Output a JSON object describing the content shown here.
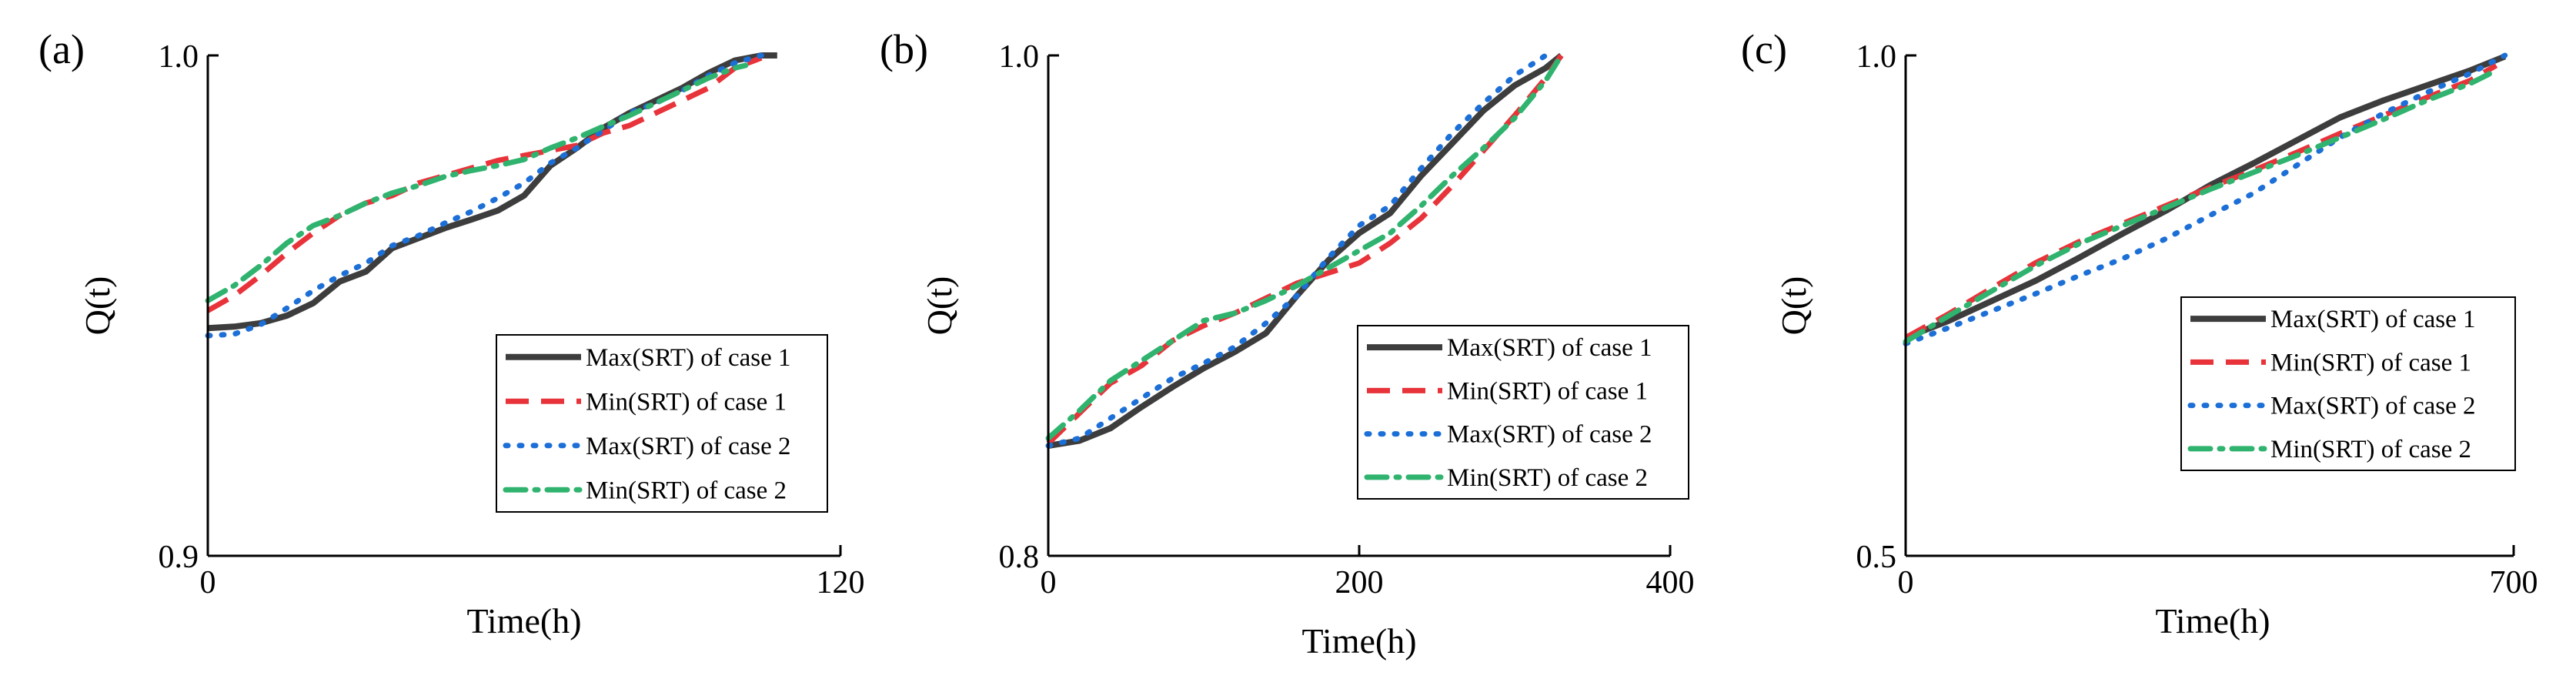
{
  "colors": {
    "max1": "#3d3d3d",
    "min1": "#e8333a",
    "max2": "#1c6fd6",
    "min2": "#2fb36e"
  },
  "chart_data": [
    {
      "type": "line",
      "panel_label": "(a)",
      "xlabel": "Time(h)",
      "ylabel": "Q(t)",
      "xlim": [
        0,
        120
      ],
      "ylim": [
        0.9,
        1.0
      ],
      "x_ticks": [
        0,
        120
      ],
      "x_tick_labels": [
        "0",
        "120"
      ],
      "y_ticks": [
        0.9,
        1.0
      ],
      "y_tick_labels": [
        "0.9",
        "1.0"
      ],
      "legend_position": "lower-right",
      "series": [
        {
          "name": "Max(SRT) of case 1",
          "style": "solid",
          "color": "#3d3d3d",
          "x": [
            0,
            5,
            10,
            15,
            20,
            25,
            30,
            35,
            40,
            45,
            50,
            55,
            60,
            65,
            70,
            75,
            80,
            85,
            90,
            95,
            100,
            105,
            108
          ],
          "y": [
            0.9455,
            0.9458,
            0.9465,
            0.948,
            0.9505,
            0.9548,
            0.9568,
            0.9615,
            0.9635,
            0.9655,
            0.9672,
            0.969,
            0.972,
            0.978,
            0.9815,
            0.9855,
            0.9885,
            0.991,
            0.9935,
            0.9965,
            0.999,
            1.0,
            1.0
          ]
        },
        {
          "name": "Min(SRT) of case 1",
          "style": "dash",
          "color": "#e8333a",
          "x": [
            0,
            5,
            10,
            15,
            20,
            25,
            30,
            35,
            40,
            45,
            50,
            55,
            60,
            65,
            70,
            75,
            80,
            85,
            90,
            95,
            100,
            105
          ],
          "y": [
            0.949,
            0.952,
            0.956,
            0.9605,
            0.9645,
            0.968,
            0.9705,
            0.972,
            0.9745,
            0.976,
            0.9775,
            0.979,
            0.98,
            0.981,
            0.982,
            0.9845,
            0.986,
            0.9885,
            0.991,
            0.9935,
            0.9975,
            0.9995
          ]
        },
        {
          "name": "Max(SRT) of case 2",
          "style": "dot",
          "color": "#1c6fd6",
          "x": [
            0,
            5,
            10,
            15,
            20,
            25,
            30,
            35,
            40,
            45,
            50,
            55,
            60,
            65,
            70,
            75,
            80,
            85,
            90,
            95,
            100,
            105
          ],
          "y": [
            0.944,
            0.9443,
            0.9462,
            0.9495,
            0.953,
            0.956,
            0.9585,
            0.962,
            0.964,
            0.9665,
            0.9688,
            0.9715,
            0.9745,
            0.9785,
            0.9815,
            0.985,
            0.9885,
            0.9905,
            0.993,
            0.996,
            0.9985,
            1.0
          ]
        },
        {
          "name": "Min(SRT) of case 2",
          "style": "dashdot",
          "color": "#2fb36e",
          "x": [
            0,
            5,
            10,
            15,
            20,
            25,
            30,
            35,
            40,
            45,
            50,
            55,
            60,
            65,
            70,
            75,
            80,
            85,
            90,
            95,
            100,
            102
          ],
          "y": [
            0.951,
            0.954,
            0.958,
            0.9625,
            0.966,
            0.968,
            0.9705,
            0.9725,
            0.974,
            0.9758,
            0.977,
            0.978,
            0.9792,
            0.9815,
            0.9835,
            0.9858,
            0.988,
            0.9905,
            0.993,
            0.9955,
            0.9975,
            0.998
          ]
        }
      ]
    },
    {
      "type": "line",
      "panel_label": "(b)",
      "xlabel": "Time(h)",
      "ylabel": "Q(t)",
      "xlim": [
        0,
        400
      ],
      "ylim": [
        0.8,
        1.0
      ],
      "x_ticks": [
        0,
        200,
        400
      ],
      "x_tick_labels": [
        "0",
        "200",
        "400"
      ],
      "y_ticks": [
        0.8,
        1.0
      ],
      "y_tick_labels": [
        "0.8",
        "1.0"
      ],
      "legend_position": "lower-right",
      "series": [
        {
          "name": "Max(SRT) of case 1",
          "style": "solid",
          "color": "#3d3d3d",
          "x": [
            0,
            20,
            40,
            60,
            80,
            100,
            120,
            140,
            160,
            180,
            200,
            220,
            240,
            260,
            280,
            300,
            320,
            330
          ],
          "y": [
            0.844,
            0.846,
            0.851,
            0.8595,
            0.8675,
            0.875,
            0.8815,
            0.889,
            0.904,
            0.918,
            0.929,
            0.937,
            0.952,
            0.965,
            0.978,
            0.988,
            0.995,
            1.0
          ]
        },
        {
          "name": "Min(SRT) of case 1",
          "style": "dash",
          "color": "#e8333a",
          "x": [
            0,
            20,
            40,
            60,
            80,
            100,
            120,
            140,
            160,
            180,
            200,
            220,
            240,
            260,
            280,
            300,
            320,
            330
          ],
          "y": [
            0.845,
            0.857,
            0.869,
            0.876,
            0.886,
            0.892,
            0.897,
            0.903,
            0.909,
            0.913,
            0.917,
            0.925,
            0.935,
            0.948,
            0.962,
            0.976,
            0.991,
            1.0
          ]
        },
        {
          "name": "Max(SRT) of case 2",
          "style": "dot",
          "color": "#1c6fd6",
          "x": [
            0,
            20,
            40,
            60,
            80,
            100,
            120,
            140,
            160,
            180,
            200,
            220,
            240,
            260,
            280,
            300,
            320
          ],
          "y": [
            0.844,
            0.847,
            0.855,
            0.863,
            0.871,
            0.877,
            0.8835,
            0.893,
            0.904,
            0.919,
            0.932,
            0.94,
            0.955,
            0.969,
            0.981,
            0.992,
            1.0
          ]
        },
        {
          "name": "Min(SRT) of case 2",
          "style": "dashdot",
          "color": "#2fb36e",
          "x": [
            0,
            20,
            40,
            60,
            80,
            100,
            120,
            140,
            160,
            180,
            200,
            220,
            240,
            260,
            280,
            300,
            320,
            330
          ],
          "y": [
            0.847,
            0.858,
            0.87,
            0.878,
            0.886,
            0.894,
            0.897,
            0.902,
            0.908,
            0.915,
            0.922,
            0.929,
            0.94,
            0.952,
            0.963,
            0.975,
            0.99,
            1.0
          ]
        }
      ]
    },
    {
      "type": "line",
      "panel_label": "(c)",
      "xlabel": "Time(h)",
      "ylabel": "Q(t)",
      "xlim": [
        0,
        700
      ],
      "ylim": [
        0.5,
        1.0
      ],
      "x_ticks": [
        0,
        700
      ],
      "x_tick_labels": [
        "0",
        "700"
      ],
      "y_ticks": [
        0.5,
        1.0
      ],
      "y_tick_labels": [
        "0.5",
        "1.0"
      ],
      "legend_position": "lower-right",
      "series": [
        {
          "name": "Max(SRT) of case 1",
          "style": "solid",
          "color": "#3d3d3d",
          "x": [
            0,
            50,
            100,
            150,
            200,
            250,
            300,
            350,
            400,
            450,
            500,
            550,
            600,
            650,
            690
          ],
          "y": [
            0.718,
            0.735,
            0.755,
            0.775,
            0.798,
            0.822,
            0.845,
            0.87,
            0.892,
            0.915,
            0.938,
            0.955,
            0.97,
            0.985,
            0.999
          ]
        },
        {
          "name": "Min(SRT) of case 1",
          "style": "dash",
          "color": "#e8333a",
          "x": [
            0,
            50,
            100,
            150,
            200,
            250,
            300,
            350,
            400,
            450,
            500,
            550,
            600,
            650,
            680
          ],
          "y": [
            0.718,
            0.742,
            0.768,
            0.793,
            0.814,
            0.832,
            0.85,
            0.868,
            0.885,
            0.903,
            0.922,
            0.94,
            0.958,
            0.975,
            0.99
          ]
        },
        {
          "name": "Max(SRT) of case 2",
          "style": "dot",
          "color": "#1c6fd6",
          "x": [
            0,
            50,
            100,
            150,
            200,
            250,
            300,
            350,
            400,
            450,
            500,
            550,
            600,
            650,
            690
          ],
          "y": [
            0.712,
            0.728,
            0.745,
            0.762,
            0.78,
            0.797,
            0.817,
            0.84,
            0.862,
            0.89,
            0.918,
            0.942,
            0.963,
            0.982,
            1.0
          ]
        },
        {
          "name": "Min(SRT) of case 2",
          "style": "dashdot",
          "color": "#2fb36e",
          "x": [
            0,
            50,
            100,
            150,
            200,
            250,
            300,
            350,
            400,
            450,
            500,
            550,
            600,
            650,
            680
          ],
          "y": [
            0.714,
            0.74,
            0.765,
            0.79,
            0.812,
            0.83,
            0.848,
            0.866,
            0.883,
            0.9,
            0.918,
            0.936,
            0.955,
            0.972,
            0.985
          ]
        }
      ]
    }
  ]
}
